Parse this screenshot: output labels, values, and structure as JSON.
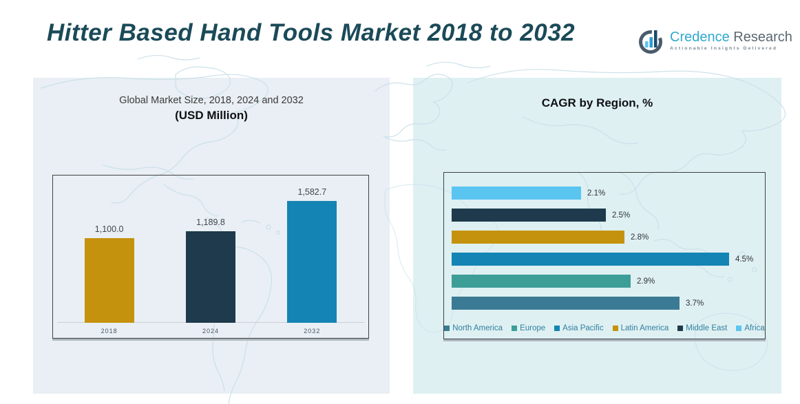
{
  "header": {
    "title": "Hitter Based Hand Tools Market 2018 to 2032"
  },
  "logo": {
    "brand_primary": "Credence",
    "brand_secondary": "Research",
    "tagline": "Actionable Insights Delivered",
    "brand_primary_color": "#2FA8CE",
    "brand_secondary_color": "#5B6770"
  },
  "left_chart": {
    "subtitle": "Global Market Size, 2018, 2024 and 2032",
    "unit_label": "(USD Million)"
  },
  "right_chart": {
    "title": "CAGR by Region, %"
  },
  "colors": {
    "title_teal": "#1B4A58",
    "panel_left_bg": "#E9EFF4",
    "panel_right_bg": "#DFF0F2",
    "map_line": "#C8DEE9",
    "gold": "#C5920D",
    "dark_navy": "#1E3A4C",
    "blue": "#1484B4",
    "teal": "#3D9E98",
    "steel_blue": "#3B7A94",
    "light_sky": "#5BC5F2"
  },
  "chart_data": [
    {
      "type": "bar",
      "title": "Global Market Size, 2018, 2024 and 2032",
      "subtitle": "(USD Million)",
      "categories": [
        "2018",
        "2024",
        "2032"
      ],
      "values": [
        1100.0,
        1189.8,
        1582.7
      ],
      "value_labels": [
        "1,100.0",
        "1,189.8",
        "1,582.7"
      ],
      "colors": [
        "#C5920D",
        "#1E3A4C",
        "#1484B4"
      ],
      "xlabel": "",
      "ylabel": "USD Million",
      "ylim": [
        0,
        1600
      ],
      "grid": false,
      "legend_position": "none"
    },
    {
      "type": "bar-horizontal",
      "title": "CAGR by Region, %",
      "rows": [
        {
          "region": "Africa",
          "value": 2.1,
          "label": "2.1%",
          "color": "#5BC5F2"
        },
        {
          "region": "Middle East",
          "value": 2.5,
          "label": "2.5%",
          "color": "#1E3A4C"
        },
        {
          "region": "Latin America",
          "value": 2.8,
          "label": "2.8%",
          "color": "#C5920D"
        },
        {
          "region": "Asia Pacific",
          "value": 4.5,
          "label": "4.5%",
          "color": "#1484B4"
        },
        {
          "region": "Europe",
          "value": 2.9,
          "label": "2.9%",
          "color": "#3D9E98"
        },
        {
          "region": "North America",
          "value": 3.7,
          "label": "3.7%",
          "color": "#3B7A94"
        }
      ],
      "xlim": [
        0,
        5
      ],
      "grid": false,
      "legend_position": "bottom",
      "legend": [
        {
          "label": "North America",
          "color": "#3B7A94"
        },
        {
          "label": "Europe",
          "color": "#3D9E98"
        },
        {
          "label": "Asia Pacific",
          "color": "#1484B4"
        },
        {
          "label": "Latin America",
          "color": "#C5920D"
        },
        {
          "label": "Middle East",
          "color": "#1E3A4C"
        },
        {
          "label": "Africa",
          "color": "#5BC5F2"
        }
      ]
    }
  ]
}
